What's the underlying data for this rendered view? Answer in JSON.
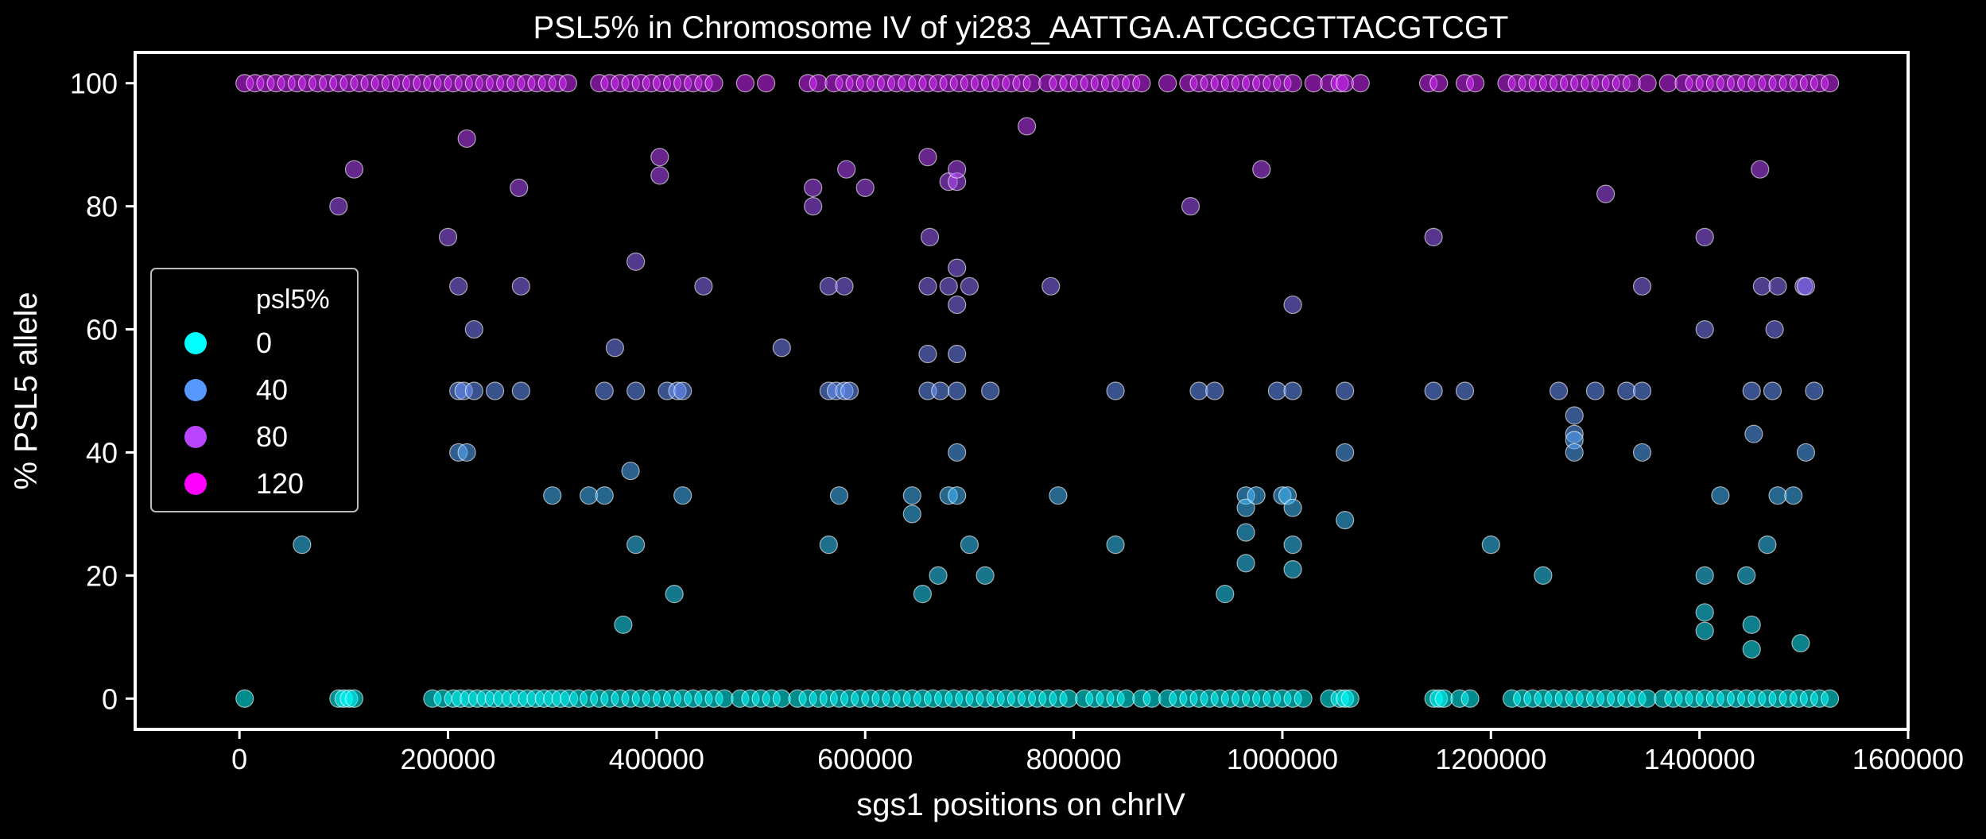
{
  "chart_data": {
    "type": "scatter",
    "title": "PSL5% in Chromosome IV of yi283_AATTGA.ATCGCGTTACGTCGT",
    "xlabel": "sgs1 positions on chrIV",
    "ylabel": "% PSL5 allele",
    "xlim": [
      -100000,
      1600000
    ],
    "ylim": [
      -5,
      105
    ],
    "xticks": [
      0,
      200000,
      400000,
      600000,
      800000,
      1000000,
      1200000,
      1400000,
      1600000
    ],
    "xtick_labels": [
      "0",
      "200000",
      "400000",
      "600000",
      "800000",
      "1000000",
      "1200000",
      "1400000",
      "1600000"
    ],
    "yticks": [
      0,
      20,
      40,
      60,
      80,
      100
    ],
    "ytick_labels": [
      "0",
      "20",
      "40",
      "60",
      "80",
      "100"
    ],
    "grid": false,
    "legend": {
      "title": "psl5%",
      "placement": "center-left",
      "entries": [
        {
          "label": "0",
          "color": "#00ffff"
        },
        {
          "label": "40",
          "color": "#5599ff"
        },
        {
          "label": "80",
          "color": "#bb44ff"
        },
        {
          "label": "120",
          "color": "#ff00ff"
        }
      ]
    },
    "hue": "y",
    "colormap": [
      "#00ffff",
      "#ff00ff"
    ],
    "points_at_100": [
      [
        5000,
        0
      ],
      [
        15000,
        0
      ],
      [
        25000,
        0
      ],
      [
        35000,
        0
      ],
      [
        45000,
        0
      ],
      [
        55000,
        0
      ],
      [
        65000,
        0
      ],
      [
        75000,
        0
      ],
      [
        85000,
        0
      ],
      [
        95000,
        0
      ],
      [
        105000,
        0
      ],
      [
        115000,
        0
      ],
      [
        125000,
        0
      ],
      [
        135000,
        0
      ],
      [
        145000,
        0
      ],
      [
        155000,
        0
      ],
      [
        165000,
        0
      ],
      [
        175000,
        0
      ],
      [
        185000,
        0
      ],
      [
        195000,
        0
      ],
      [
        205000,
        0
      ],
      [
        215000,
        0
      ],
      [
        225000,
        0
      ],
      [
        235000,
        0
      ],
      [
        245000,
        0
      ],
      [
        255000,
        0
      ],
      [
        265000,
        0
      ],
      [
        275000,
        0
      ],
      [
        285000,
        0
      ],
      [
        295000,
        0
      ],
      [
        305000,
        0
      ],
      [
        315000,
        0
      ],
      [
        345000,
        0
      ],
      [
        355000,
        0
      ],
      [
        365000,
        0
      ],
      [
        375000,
        0
      ],
      [
        385000,
        0
      ],
      [
        395000,
        0
      ],
      [
        405000,
        0
      ],
      [
        415000,
        0
      ],
      [
        425000,
        0
      ],
      [
        435000,
        0
      ],
      [
        445000,
        0
      ],
      [
        455000,
        0
      ],
      [
        485000,
        0
      ],
      [
        505000,
        0
      ],
      [
        545000,
        0
      ],
      [
        555000,
        0
      ],
      [
        570000,
        0
      ],
      [
        580000,
        0
      ],
      [
        590000,
        0
      ],
      [
        600000,
        0
      ],
      [
        610000,
        0
      ],
      [
        620000,
        0
      ],
      [
        630000,
        0
      ],
      [
        640000,
        0
      ],
      [
        650000,
        0
      ],
      [
        660000,
        0
      ],
      [
        670000,
        0
      ],
      [
        680000,
        0
      ],
      [
        690000,
        0
      ],
      [
        700000,
        0
      ],
      [
        710000,
        0
      ],
      [
        720000,
        0
      ],
      [
        730000,
        0
      ],
      [
        740000,
        0
      ],
      [
        750000,
        0
      ],
      [
        760000,
        0
      ],
      [
        775000,
        0
      ],
      [
        785000,
        0
      ],
      [
        795000,
        0
      ],
      [
        805000,
        0
      ],
      [
        815000,
        0
      ],
      [
        825000,
        0
      ],
      [
        835000,
        0
      ],
      [
        845000,
        0
      ],
      [
        855000,
        0
      ],
      [
        865000,
        0
      ],
      [
        890000,
        0
      ],
      [
        910000,
        0
      ],
      [
        920000,
        0
      ],
      [
        930000,
        0
      ],
      [
        940000,
        0
      ],
      [
        950000,
        0
      ],
      [
        960000,
        0
      ],
      [
        970000,
        0
      ],
      [
        980000,
        0
      ],
      [
        990000,
        0
      ],
      [
        1000000,
        0
      ],
      [
        1010000,
        0
      ],
      [
        1030000,
        0
      ],
      [
        1045000,
        0
      ],
      [
        1055000,
        0
      ],
      [
        1060000,
        0
      ],
      [
        1075000,
        0
      ],
      [
        1140000,
        0
      ],
      [
        1150000,
        0
      ],
      [
        1175000,
        0
      ],
      [
        1185000,
        0
      ],
      [
        1215000,
        0
      ],
      [
        1225000,
        0
      ],
      [
        1235000,
        0
      ],
      [
        1245000,
        0
      ],
      [
        1255000,
        0
      ],
      [
        1265000,
        0
      ],
      [
        1275000,
        0
      ],
      [
        1285000,
        0
      ],
      [
        1295000,
        0
      ],
      [
        1305000,
        0
      ],
      [
        1315000,
        0
      ],
      [
        1325000,
        0
      ],
      [
        1335000,
        0
      ],
      [
        1350000,
        0
      ],
      [
        1370000,
        0
      ],
      [
        1385000,
        0
      ],
      [
        1395000,
        0
      ],
      [
        1405000,
        0
      ],
      [
        1415000,
        0
      ],
      [
        1425000,
        0
      ],
      [
        1435000,
        0
      ],
      [
        1445000,
        0
      ],
      [
        1455000,
        0
      ],
      [
        1465000,
        0
      ],
      [
        1475000,
        0
      ],
      [
        1485000,
        0
      ],
      [
        1495000,
        0
      ],
      [
        1505000,
        0
      ],
      [
        1515000,
        0
      ],
      [
        1525000,
        0
      ]
    ],
    "points_at_0": [
      5000,
      95000,
      100000,
      105000,
      110000,
      185000,
      195000,
      205000,
      212000,
      220000,
      228000,
      236000,
      244000,
      252000,
      260000,
      268000,
      276000,
      284000,
      292000,
      300000,
      308000,
      316000,
      325000,
      335000,
      345000,
      355000,
      365000,
      375000,
      385000,
      395000,
      405000,
      415000,
      425000,
      435000,
      445000,
      455000,
      465000,
      480000,
      490000,
      500000,
      510000,
      520000,
      535000,
      545000,
      555000,
      565000,
      575000,
      585000,
      595000,
      605000,
      615000,
      625000,
      635000,
      645000,
      655000,
      665000,
      675000,
      685000,
      695000,
      705000,
      715000,
      725000,
      735000,
      745000,
      755000,
      765000,
      775000,
      785000,
      795000,
      810000,
      820000,
      830000,
      840000,
      850000,
      865000,
      875000,
      890000,
      900000,
      910000,
      920000,
      930000,
      940000,
      950000,
      960000,
      970000,
      980000,
      990000,
      1000000,
      1010000,
      1020000,
      1045000,
      1055000,
      1060000,
      1065000,
      1145000,
      1150000,
      1155000,
      1170000,
      1180000,
      1220000,
      1230000,
      1240000,
      1250000,
      1260000,
      1270000,
      1280000,
      1290000,
      1300000,
      1310000,
      1320000,
      1330000,
      1340000,
      1350000,
      1365000,
      1375000,
      1385000,
      1395000,
      1405000,
      1415000,
      1425000,
      1435000,
      1445000,
      1455000,
      1465000,
      1475000,
      1485000,
      1495000,
      1505000,
      1515000,
      1525000
    ],
    "points_mid": [
      [
        95000,
        80
      ],
      [
        110000,
        86
      ],
      [
        60000,
        25
      ],
      [
        200000,
        75
      ],
      [
        210000,
        67
      ],
      [
        218000,
        91
      ],
      [
        225000,
        60
      ],
      [
        210000,
        50
      ],
      [
        215000,
        50
      ],
      [
        225000,
        50
      ],
      [
        245000,
        50
      ],
      [
        270000,
        50
      ],
      [
        210000,
        40
      ],
      [
        218000,
        40
      ],
      [
        268000,
        83
      ],
      [
        270000,
        67
      ],
      [
        300000,
        33
      ],
      [
        335000,
        33
      ],
      [
        350000,
        33
      ],
      [
        350000,
        50
      ],
      [
        360000,
        57
      ],
      [
        368000,
        12
      ],
      [
        375000,
        37
      ],
      [
        380000,
        71
      ],
      [
        380000,
        50
      ],
      [
        380000,
        25
      ],
      [
        403000,
        88
      ],
      [
        403000,
        85
      ],
      [
        410000,
        50
      ],
      [
        420000,
        50
      ],
      [
        425000,
        50
      ],
      [
        417000,
        17
      ],
      [
        425000,
        33
      ],
      [
        445000,
        67
      ],
      [
        520000,
        57
      ],
      [
        550000,
        83
      ],
      [
        550000,
        80
      ],
      [
        565000,
        67
      ],
      [
        565000,
        50
      ],
      [
        572000,
        50
      ],
      [
        580000,
        50
      ],
      [
        585000,
        50
      ],
      [
        565000,
        25
      ],
      [
        575000,
        33
      ],
      [
        580000,
        67
      ],
      [
        582000,
        86
      ],
      [
        600000,
        83
      ],
      [
        645000,
        33
      ],
      [
        645000,
        30
      ],
      [
        655000,
        17
      ],
      [
        660000,
        88
      ],
      [
        662000,
        75
      ],
      [
        660000,
        67
      ],
      [
        660000,
        56
      ],
      [
        660000,
        50
      ],
      [
        672000,
        50
      ],
      [
        670000,
        20
      ],
      [
        680000,
        33
      ],
      [
        680000,
        67
      ],
      [
        680000,
        84
      ],
      [
        688000,
        84
      ],
      [
        688000,
        86
      ],
      [
        688000,
        70
      ],
      [
        688000,
        64
      ],
      [
        688000,
        56
      ],
      [
        688000,
        50
      ],
      [
        688000,
        40
      ],
      [
        688000,
        33
      ],
      [
        700000,
        67
      ],
      [
        700000,
        25
      ],
      [
        715000,
        20
      ],
      [
        720000,
        50
      ],
      [
        755000,
        93
      ],
      [
        778000,
        67
      ],
      [
        785000,
        33
      ],
      [
        840000,
        50
      ],
      [
        840000,
        25
      ],
      [
        912000,
        80
      ],
      [
        920000,
        50
      ],
      [
        935000,
        50
      ],
      [
        945000,
        17
      ],
      [
        965000,
        33
      ],
      [
        965000,
        31
      ],
      [
        965000,
        27
      ],
      [
        965000,
        22
      ],
      [
        975000,
        33
      ],
      [
        980000,
        86
      ],
      [
        995000,
        50
      ],
      [
        1000000,
        33
      ],
      [
        1005000,
        33
      ],
      [
        1010000,
        64
      ],
      [
        1010000,
        50
      ],
      [
        1010000,
        31
      ],
      [
        1010000,
        25
      ],
      [
        1010000,
        21
      ],
      [
        1060000,
        50
      ],
      [
        1060000,
        40
      ],
      [
        1060000,
        29
      ],
      [
        1145000,
        75
      ],
      [
        1145000,
        50
      ],
      [
        1175000,
        50
      ],
      [
        1200000,
        25
      ],
      [
        1250000,
        20
      ],
      [
        1265000,
        50
      ],
      [
        1280000,
        46
      ],
      [
        1280000,
        43
      ],
      [
        1280000,
        42
      ],
      [
        1280000,
        40
      ],
      [
        1300000,
        50
      ],
      [
        1310000,
        82
      ],
      [
        1330000,
        50
      ],
      [
        1345000,
        67
      ],
      [
        1345000,
        50
      ],
      [
        1345000,
        40
      ],
      [
        1405000,
        75
      ],
      [
        1405000,
        60
      ],
      [
        1405000,
        20
      ],
      [
        1405000,
        14
      ],
      [
        1405000,
        11
      ],
      [
        1420000,
        33
      ],
      [
        1445000,
        20
      ],
      [
        1450000,
        50
      ],
      [
        1452000,
        43
      ],
      [
        1450000,
        12
      ],
      [
        1450000,
        8
      ],
      [
        1458000,
        86
      ],
      [
        1460000,
        67
      ],
      [
        1465000,
        25
      ],
      [
        1470000,
        50
      ],
      [
        1472000,
        60
      ],
      [
        1475000,
        67
      ],
      [
        1475000,
        33
      ],
      [
        1490000,
        33
      ],
      [
        1497000,
        9
      ],
      [
        1500000,
        67
      ],
      [
        1502000,
        67
      ],
      [
        1502000,
        40
      ],
      [
        1510000,
        50
      ]
    ]
  }
}
